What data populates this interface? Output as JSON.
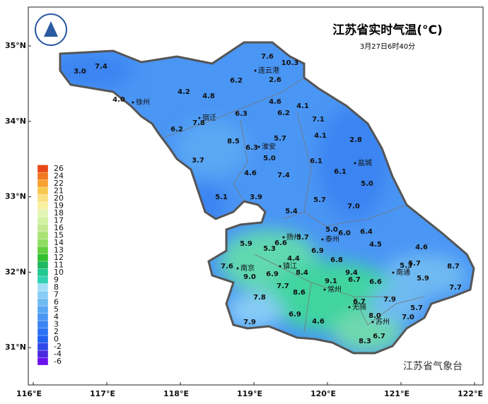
{
  "title": "江苏省实时气温(°C)",
  "subtitle": "3月27日6时40分",
  "footer": "江苏省气象台",
  "lon_ticks": [
    {
      "value": 116,
      "label": "116°E"
    },
    {
      "value": 117,
      "label": "117°E"
    },
    {
      "value": 118,
      "label": "118°E"
    },
    {
      "value": 119,
      "label": "119°E"
    },
    {
      "value": 120,
      "label": "120°E"
    },
    {
      "value": 121,
      "label": "121°E"
    },
    {
      "value": 122,
      "label": "122°E"
    }
  ],
  "lat_ticks": [
    {
      "value": 35,
      "label": "35°N"
    },
    {
      "value": 34,
      "label": "34°N"
    },
    {
      "value": 33,
      "label": "33°N"
    },
    {
      "value": 32,
      "label": "32°N"
    },
    {
      "value": 31,
      "label": "31°N"
    }
  ],
  "legend": {
    "levels": [
      -6,
      -4,
      -2,
      0,
      2,
      3,
      4,
      5,
      6,
      7,
      8,
      9,
      10,
      11,
      12,
      13,
      14,
      15,
      16,
      17,
      18,
      19,
      20,
      21,
      22,
      24,
      26
    ],
    "colors": [
      "#6a10f0",
      "#4a28e0",
      "#3048e8",
      "#2060f0",
      "#2a72f4",
      "#3a84f2",
      "#4a96f4",
      "#5aa8f4",
      "#70baf2",
      "#88ccf6",
      "#a2def8",
      "#30d2b2",
      "#20c890",
      "#1eb860",
      "#32c030",
      "#62d040",
      "#90dc60",
      "#a8e272",
      "#c2ea90",
      "#d2f2a2",
      "#e2f4b4",
      "#f8f0a0",
      "#fae080",
      "#f8c850",
      "#f8a030",
      "#f07820",
      "#e84818"
    ]
  },
  "cities": [
    "徐州",
    "宿迁",
    "连云港",
    "淮安",
    "盐城",
    "扬州",
    "泰州",
    "南京",
    "镇江",
    "常州",
    "无锡",
    "苏州",
    "南通"
  ],
  "stations": [
    {
      "value": 3,
      "label": "3.0"
    },
    {
      "value": 7.4,
      "label": "7.4"
    },
    {
      "value": 4,
      "label": "4.0"
    },
    {
      "value": 4.2,
      "label": "4.2"
    },
    {
      "value": 4.8,
      "label": "4.8"
    },
    {
      "value": 6.2,
      "label": "6.2"
    },
    {
      "value": 7.6,
      "label": "7.6"
    },
    {
      "value": 10.3,
      "label": "10.3"
    },
    {
      "value": 2.6,
      "label": "2.6"
    },
    {
      "value": 4.6,
      "label": "4.6"
    },
    {
      "value": 6.2,
      "label": "6.2"
    },
    {
      "value": 4.1,
      "label": "4.1"
    },
    {
      "value": 6.3,
      "label": "6.3"
    },
    {
      "value": 7.8,
      "label": "7.8"
    },
    {
      "value": 6.2,
      "label": "6.2"
    },
    {
      "value": 7.1,
      "label": "7.1"
    },
    {
      "value": 4.1,
      "label": "4.1"
    },
    {
      "value": 2.8,
      "label": "2.8"
    },
    {
      "value": 5.7,
      "label": "5.7"
    },
    {
      "value": 8.5,
      "label": "8.5"
    },
    {
      "value": 6.3,
      "label": "6.3"
    },
    {
      "value": 5,
      "label": "5.0"
    },
    {
      "value": 3.7,
      "label": "3.7"
    },
    {
      "value": 6.1,
      "label": "6.1"
    },
    {
      "value": 6.1,
      "label": "6.1"
    },
    {
      "value": 4.6,
      "label": "4.6"
    },
    {
      "value": 7.4,
      "label": "7.4"
    },
    {
      "value": 5,
      "label": "5.0"
    },
    {
      "value": 5.1,
      "label": "5.1"
    },
    {
      "value": 3.9,
      "label": "3.9"
    },
    {
      "value": 5.7,
      "label": "5.7"
    },
    {
      "value": 7,
      "label": "7.0"
    },
    {
      "value": 5.4,
      "label": "5.4"
    },
    {
      "value": 5,
      "label": "5.0"
    },
    {
      "value": 6,
      "label": "6.0"
    },
    {
      "value": 6.4,
      "label": "6.4"
    },
    {
      "value": 5.9,
      "label": "5.9"
    },
    {
      "value": 6.6,
      "label": "6.6"
    },
    {
      "value": 3.7,
      "label": "3.7"
    },
    {
      "value": 5.3,
      "label": "5.3"
    },
    {
      "value": 6.9,
      "label": "6.9"
    },
    {
      "value": 4.5,
      "label": "4.5"
    },
    {
      "value": 4.6,
      "label": "4.6"
    },
    {
      "value": 4.4,
      "label": "4.4"
    },
    {
      "value": 6.8,
      "label": "6.8"
    },
    {
      "value": 7.6,
      "label": "7.6"
    },
    {
      "value": 9,
      "label": "9.0"
    },
    {
      "value": 6.9,
      "label": "6.9"
    },
    {
      "value": 8.4,
      "label": "8.4"
    },
    {
      "value": 9.4,
      "label": "9.4"
    },
    {
      "value": 5.3,
      "label": "5.3"
    },
    {
      "value": 5.7,
      "label": "5.7"
    },
    {
      "value": 8.7,
      "label": "8.7"
    },
    {
      "value": 9.1,
      "label": "9.1"
    },
    {
      "value": 6.7,
      "label": "6.7"
    },
    {
      "value": 6.6,
      "label": "6.6"
    },
    {
      "value": 5.9,
      "label": "5.9"
    },
    {
      "value": 7.7,
      "label": "7.7"
    },
    {
      "value": 8.6,
      "label": "8.6"
    },
    {
      "value": 7.8,
      "label": "7.8"
    },
    {
      "value": 7.7,
      "label": "7.7"
    },
    {
      "value": 6.7,
      "label": "6.7"
    },
    {
      "value": 7.9,
      "label": "7.9"
    },
    {
      "value": 5.7,
      "label": "5.7"
    },
    {
      "value": 7,
      "label": "7.0"
    },
    {
      "value": 6.9,
      "label": "6.9"
    },
    {
      "value": 8,
      "label": "8.0"
    },
    {
      "value": 4.6,
      "label": "4.6"
    },
    {
      "value": 7.9,
      "label": "7.9"
    },
    {
      "value": 6.7,
      "label": "6.7"
    },
    {
      "value": 8.3,
      "label": "8.3"
    }
  ]
}
